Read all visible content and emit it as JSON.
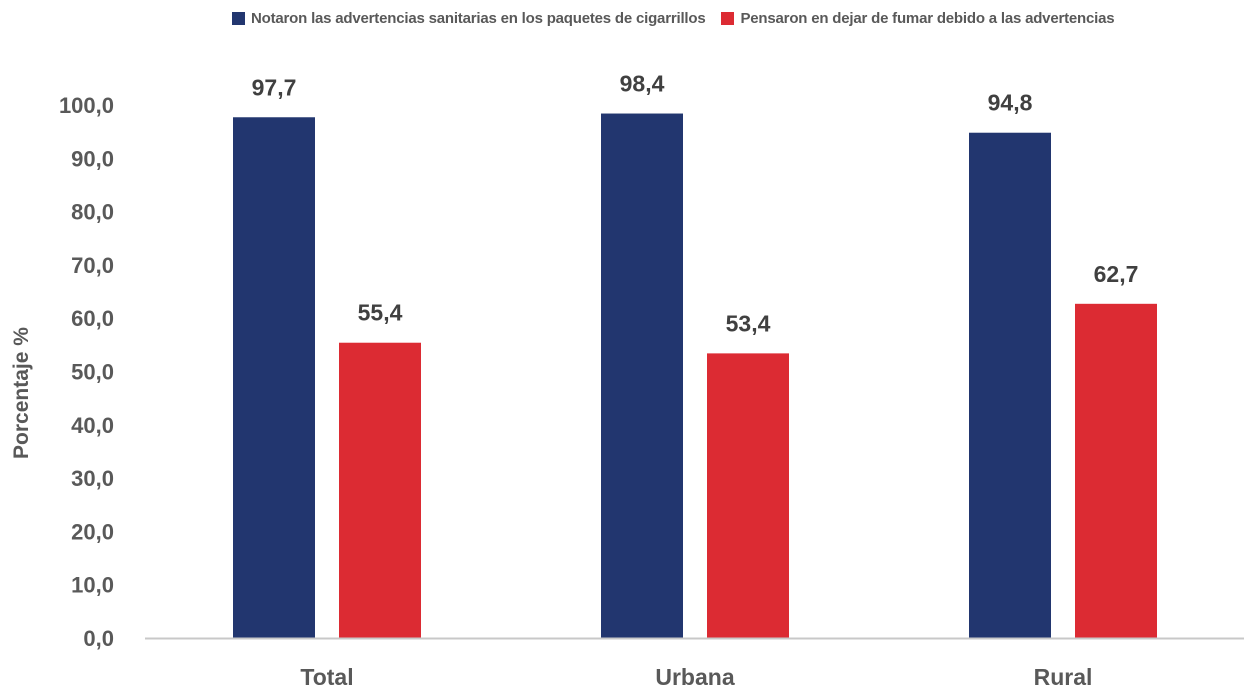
{
  "chart_data": {
    "type": "bar",
    "categories": [
      "Total",
      "Urbana",
      "Rural"
    ],
    "series": [
      {
        "name": "Notaron las advertencias sanitarias en los paquetes de cigarrillos",
        "color": "#22366f",
        "values": [
          97.7,
          98.4,
          94.8
        ],
        "value_labels": [
          "97,7",
          "98,4",
          "94,8"
        ]
      },
      {
        "name": "Pensaron en dejar de fumar debido a las advertencias",
        "color": "#dc2b33",
        "values": [
          55.4,
          53.4,
          62.7
        ],
        "value_labels": [
          "55,4",
          "53,4",
          "62,7"
        ]
      }
    ],
    "title": "",
    "xlabel": "",
    "ylabel": "Porcentaje %",
    "ylim": [
      0,
      100
    ],
    "yticks": [
      0,
      10,
      20,
      30,
      40,
      50,
      60,
      70,
      80,
      90,
      100
    ],
    "ytick_labels": [
      "0,0",
      "10,0",
      "20,0",
      "30,0",
      "40,0",
      "50,0",
      "60,0",
      "70,0",
      "80,0",
      "90,0",
      "100,0"
    ],
    "grid": false,
    "legend_position": "top"
  }
}
